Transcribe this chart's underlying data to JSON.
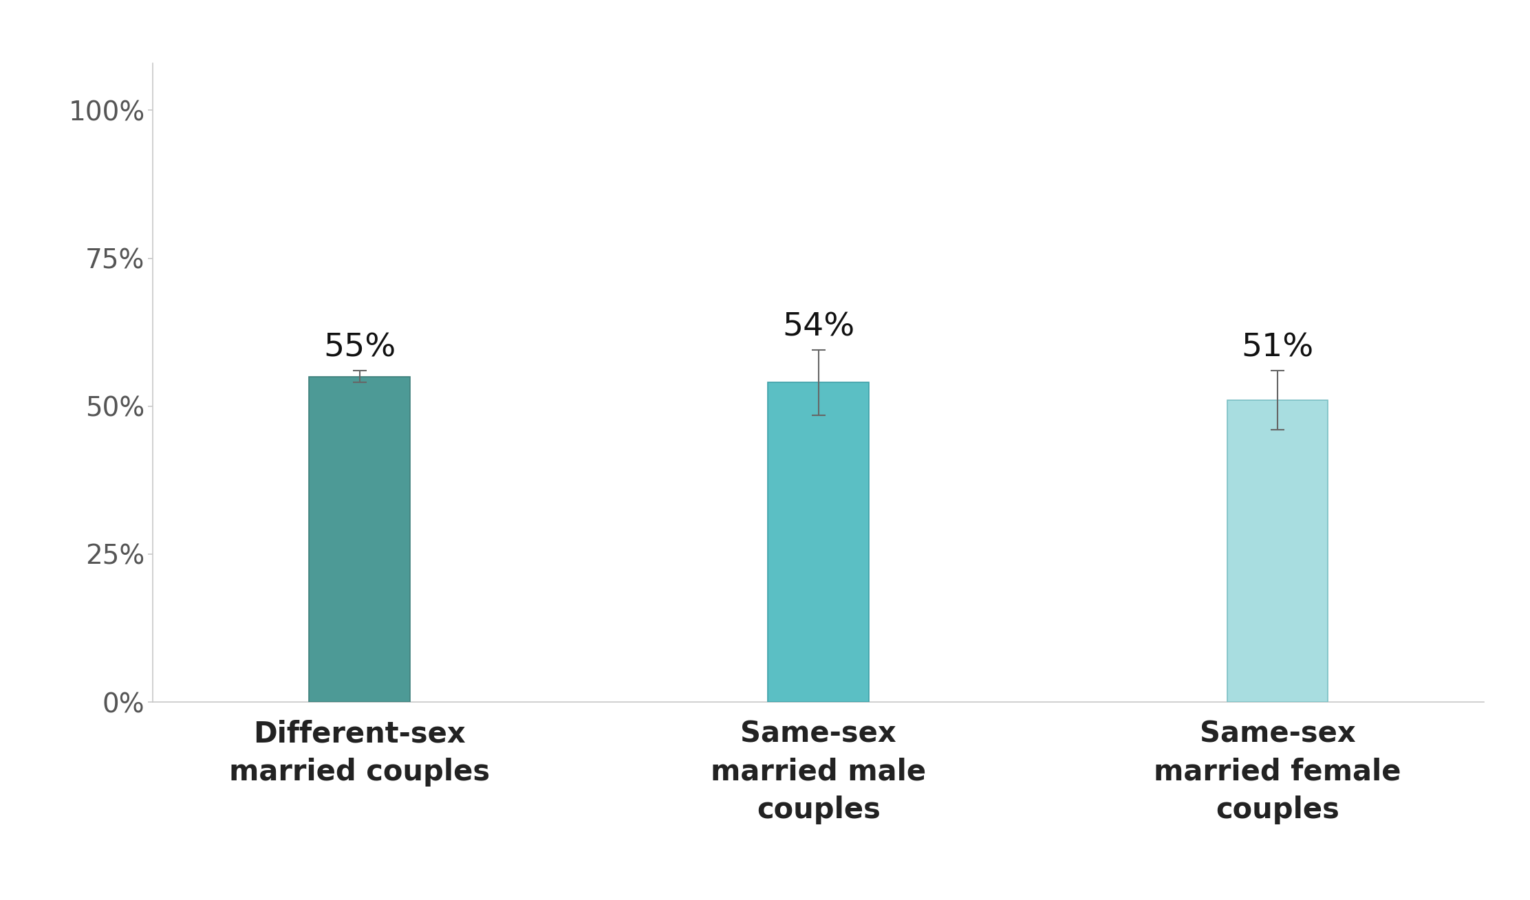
{
  "categories": [
    "Different-sex\nmarried couples",
    "Same-sex\nmarried male\ncouples",
    "Same-sex\nmarried female\ncouples"
  ],
  "values": [
    55,
    54,
    51
  ],
  "errors": [
    1.0,
    5.5,
    5.0
  ],
  "bar_colors": [
    "#4d9a96",
    "#5bbfc4",
    "#a8dde0"
  ],
  "bar_edgecolors": [
    "#3d7e7a",
    "#3da0a8",
    "#7bbfc4"
  ],
  "value_labels": [
    "55%",
    "54%",
    "51%"
  ],
  "yticks": [
    0,
    25,
    50,
    75,
    100
  ],
  "ytick_labels": [
    "0%",
    "25%",
    "50%",
    "75%",
    "100%"
  ],
  "ylim": [
    0,
    108
  ],
  "background_color": "#ffffff",
  "label_fontsize": 30,
  "tick_fontsize": 28,
  "value_label_fontsize": 34,
  "bar_width": 0.22,
  "axis_color": "#c8c8c8",
  "text_color": "#555555",
  "x_positions": [
    0,
    1,
    2
  ],
  "xlim": [
    -0.45,
    2.45
  ]
}
